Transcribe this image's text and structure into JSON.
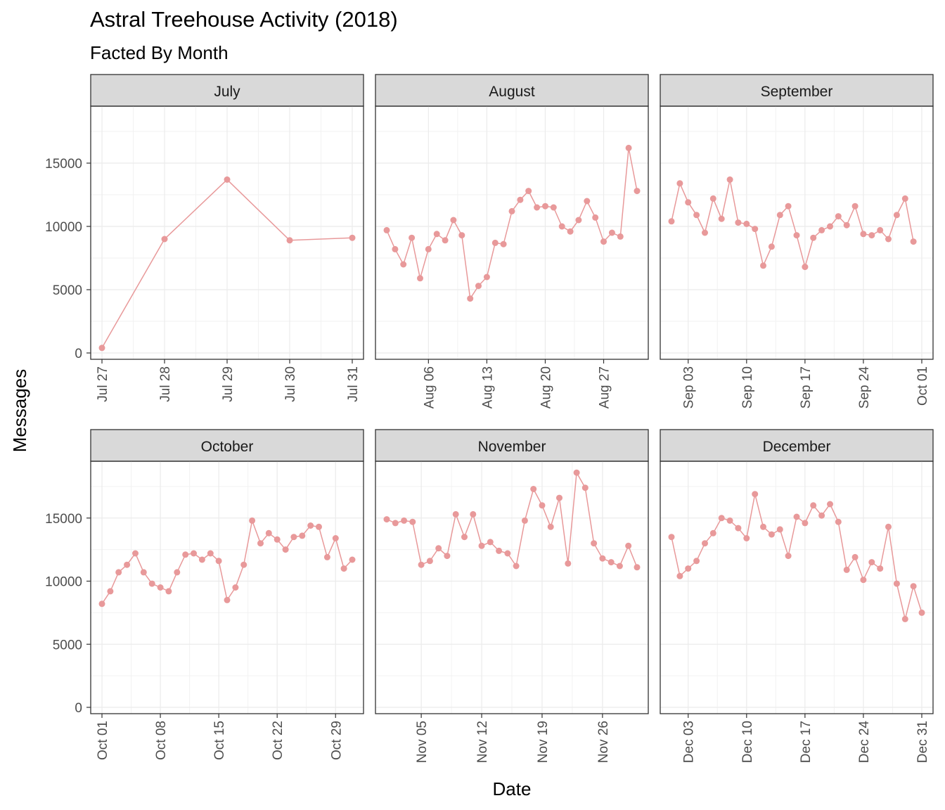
{
  "chart_data": {
    "type": "line",
    "title": "Astral Treehouse Activity (2018)",
    "subtitle": "Facted By Month",
    "xlabel": "Date",
    "ylabel": "Messages",
    "ylim": [
      0,
      19500
    ],
    "y_ticks": [
      0,
      5000,
      10000,
      15000
    ],
    "grid": true,
    "series_color": "#E8999A",
    "panels": [
      {
        "name": "July",
        "x_start": "2018-07-27",
        "x_end": "2018-07-31",
        "ticks": [
          [
            "2018-07-27",
            "Jul 27"
          ],
          [
            "2018-07-28",
            "Jul 28"
          ],
          [
            "2018-07-29",
            "Jul 29"
          ],
          [
            "2018-07-30",
            "Jul 30"
          ],
          [
            "2018-07-31",
            "Jul 31"
          ]
        ],
        "dates": [
          "2018-07-27",
          "2018-07-28",
          "2018-07-29",
          "2018-07-30",
          "2018-07-31"
        ],
        "values": [
          400,
          9000,
          13700,
          8900,
          9100
        ]
      },
      {
        "name": "August",
        "x_start": "2018-08-01",
        "x_end": "2018-08-31",
        "ticks": [
          [
            "2018-08-06",
            "Aug 06"
          ],
          [
            "2018-08-13",
            "Aug 13"
          ],
          [
            "2018-08-20",
            "Aug 20"
          ],
          [
            "2018-08-27",
            "Aug 27"
          ]
        ],
        "dates": [
          "2018-08-01",
          "2018-08-02",
          "2018-08-03",
          "2018-08-04",
          "2018-08-05",
          "2018-08-06",
          "2018-08-07",
          "2018-08-08",
          "2018-08-09",
          "2018-08-10",
          "2018-08-11",
          "2018-08-12",
          "2018-08-13",
          "2018-08-14",
          "2018-08-15",
          "2018-08-16",
          "2018-08-17",
          "2018-08-18",
          "2018-08-19",
          "2018-08-20",
          "2018-08-21",
          "2018-08-22",
          "2018-08-23",
          "2018-08-24",
          "2018-08-25",
          "2018-08-26",
          "2018-08-27",
          "2018-08-28",
          "2018-08-29",
          "2018-08-30",
          "2018-08-31"
        ],
        "values": [
          9700,
          8200,
          7000,
          9100,
          5900,
          8200,
          9400,
          8900,
          10500,
          9300,
          4300,
          5300,
          6000,
          8700,
          8600,
          11200,
          12100,
          12800,
          11500,
          11600,
          11500,
          10000,
          9600,
          10500,
          12000,
          10700,
          8800,
          9500,
          9200,
          16200,
          12800
        ]
      },
      {
        "name": "September",
        "x_start": "2018-09-01",
        "x_end": "2018-10-01",
        "ticks": [
          [
            "2018-09-03",
            "Sep 03"
          ],
          [
            "2018-09-10",
            "Sep 10"
          ],
          [
            "2018-09-17",
            "Sep 17"
          ],
          [
            "2018-09-24",
            "Sep 24"
          ],
          [
            "2018-10-01",
            "Oct 01"
          ]
        ],
        "dates": [
          "2018-09-01",
          "2018-09-02",
          "2018-09-03",
          "2018-09-04",
          "2018-09-05",
          "2018-09-06",
          "2018-09-07",
          "2018-09-08",
          "2018-09-09",
          "2018-09-10",
          "2018-09-11",
          "2018-09-12",
          "2018-09-13",
          "2018-09-14",
          "2018-09-15",
          "2018-09-16",
          "2018-09-17",
          "2018-09-18",
          "2018-09-19",
          "2018-09-20",
          "2018-09-21",
          "2018-09-22",
          "2018-09-23",
          "2018-09-24",
          "2018-09-25",
          "2018-09-26",
          "2018-09-27",
          "2018-09-28",
          "2018-09-29",
          "2018-09-30"
        ],
        "values": [
          10400,
          13400,
          11900,
          10900,
          9500,
          12200,
          10600,
          13700,
          10300,
          10200,
          9800,
          6900,
          8400,
          10900,
          11600,
          9300,
          6800,
          9100,
          9700,
          10000,
          10800,
          10100,
          11600,
          9400,
          9300,
          9700,
          9000,
          10900,
          12200,
          8800
        ]
      },
      {
        "name": "October",
        "x_start": "2018-10-01",
        "x_end": "2018-10-31",
        "ticks": [
          [
            "2018-10-01",
            "Oct 01"
          ],
          [
            "2018-10-08",
            "Oct 08"
          ],
          [
            "2018-10-15",
            "Oct 15"
          ],
          [
            "2018-10-22",
            "Oct 22"
          ],
          [
            "2018-10-29",
            "Oct 29"
          ]
        ],
        "dates": [
          "2018-10-01",
          "2018-10-02",
          "2018-10-03",
          "2018-10-04",
          "2018-10-05",
          "2018-10-06",
          "2018-10-07",
          "2018-10-08",
          "2018-10-09",
          "2018-10-10",
          "2018-10-11",
          "2018-10-12",
          "2018-10-13",
          "2018-10-14",
          "2018-10-15",
          "2018-10-16",
          "2018-10-17",
          "2018-10-18",
          "2018-10-19",
          "2018-10-20",
          "2018-10-21",
          "2018-10-22",
          "2018-10-23",
          "2018-10-24",
          "2018-10-25",
          "2018-10-26",
          "2018-10-27",
          "2018-10-28",
          "2018-10-29",
          "2018-10-30",
          "2018-10-31"
        ],
        "values": [
          8200,
          9200,
          10700,
          11300,
          12200,
          10700,
          9800,
          9500,
          9200,
          10700,
          12100,
          12200,
          11700,
          12200,
          11600,
          8500,
          9500,
          11300,
          14800,
          13000,
          13800,
          13300,
          12500,
          13500,
          13600,
          14400,
          14300,
          11900,
          13400,
          11000,
          11700
        ]
      },
      {
        "name": "November",
        "x_start": "2018-11-01",
        "x_end": "2018-11-30",
        "ticks": [
          [
            "2018-11-05",
            "Nov 05"
          ],
          [
            "2018-11-12",
            "Nov 12"
          ],
          [
            "2018-11-19",
            "Nov 19"
          ],
          [
            "2018-11-26",
            "Nov 26"
          ]
        ],
        "dates": [
          "2018-11-01",
          "2018-11-02",
          "2018-11-03",
          "2018-11-04",
          "2018-11-05",
          "2018-11-06",
          "2018-11-07",
          "2018-11-08",
          "2018-11-09",
          "2018-11-10",
          "2018-11-11",
          "2018-11-12",
          "2018-11-13",
          "2018-11-14",
          "2018-11-15",
          "2018-11-16",
          "2018-11-17",
          "2018-11-18",
          "2018-11-19",
          "2018-11-20",
          "2018-11-21",
          "2018-11-22",
          "2018-11-23",
          "2018-11-24",
          "2018-11-25",
          "2018-11-26",
          "2018-11-27",
          "2018-11-28",
          "2018-11-29",
          "2018-11-30"
        ],
        "values": [
          14900,
          14600,
          14800,
          14700,
          11300,
          11600,
          12600,
          12000,
          15300,
          13500,
          15300,
          12800,
          13100,
          12400,
          12200,
          11200,
          14800,
          17300,
          16000,
          14300,
          16600,
          11400,
          18600,
          17400,
          13000,
          11800,
          11500,
          11200,
          12800,
          11100
        ]
      },
      {
        "name": "December",
        "x_start": "2018-12-01",
        "x_end": "2018-12-31",
        "ticks": [
          [
            "2018-12-03",
            "Dec 03"
          ],
          [
            "2018-12-10",
            "Dec 10"
          ],
          [
            "2018-12-17",
            "Dec 17"
          ],
          [
            "2018-12-24",
            "Dec 24"
          ],
          [
            "2018-12-31",
            "Dec 31"
          ]
        ],
        "dates": [
          "2018-12-01",
          "2018-12-02",
          "2018-12-03",
          "2018-12-04",
          "2018-12-05",
          "2018-12-06",
          "2018-12-07",
          "2018-12-08",
          "2018-12-09",
          "2018-12-10",
          "2018-12-11",
          "2018-12-12",
          "2018-12-13",
          "2018-12-14",
          "2018-12-15",
          "2018-12-16",
          "2018-12-17",
          "2018-12-18",
          "2018-12-19",
          "2018-12-20",
          "2018-12-21",
          "2018-12-22",
          "2018-12-23",
          "2018-12-24",
          "2018-12-25",
          "2018-12-26",
          "2018-12-27",
          "2018-12-28",
          "2018-12-29",
          "2018-12-30",
          "2018-12-31"
        ],
        "values": [
          13500,
          10400,
          11000,
          11600,
          13000,
          13800,
          15000,
          14800,
          14200,
          13400,
          16900,
          14300,
          13700,
          14100,
          12000,
          15100,
          14600,
          16000,
          15200,
          16100,
          14700,
          10900,
          11900,
          10100,
          11500,
          11000,
          14300,
          9800,
          7000,
          9600,
          7500
        ]
      }
    ]
  }
}
